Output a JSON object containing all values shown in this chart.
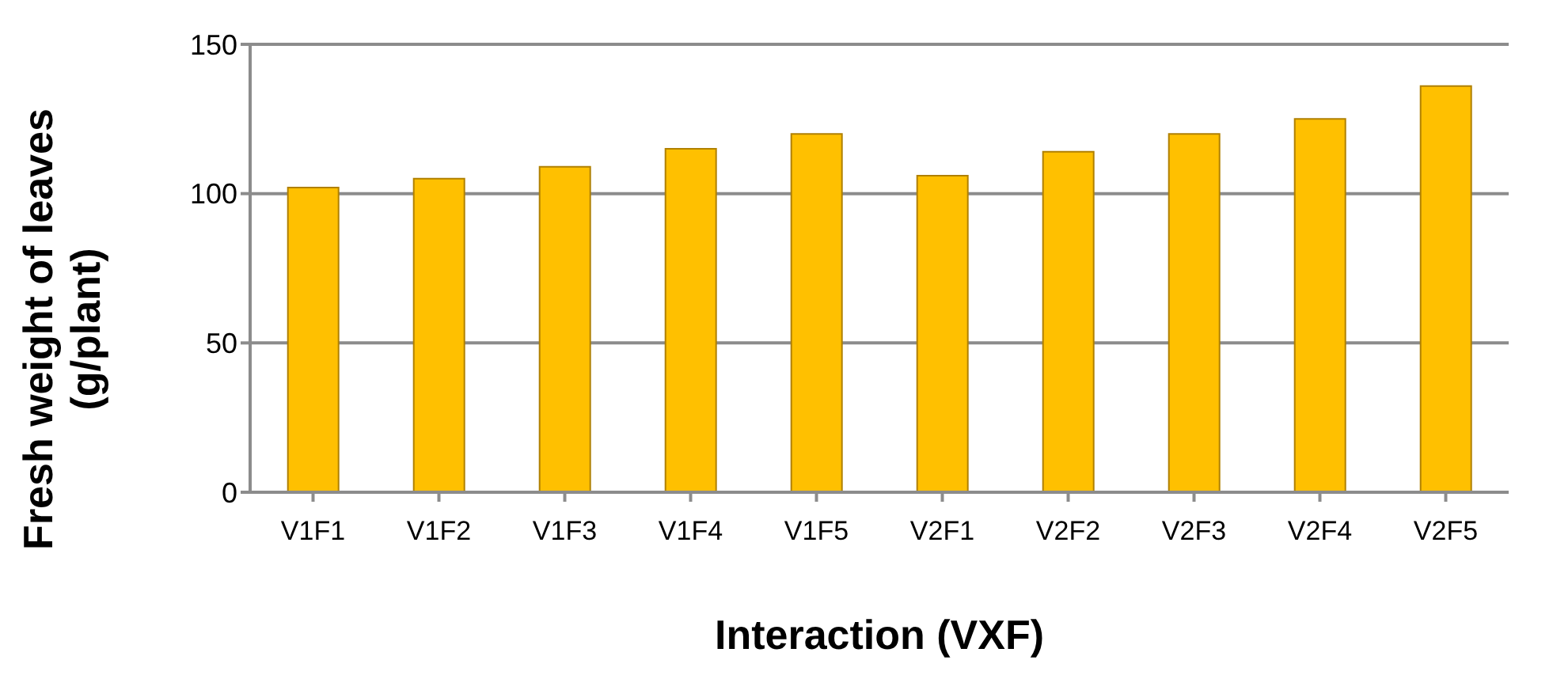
{
  "chart_data": {
    "type": "bar",
    "xlabel": "Interaction (VXF)",
    "ylabel": "Fresh weight of leaves\n(g/plant)",
    "categories": [
      "V1F1",
      "V1F2",
      "V1F3",
      "V1F4",
      "V1F5",
      "V2F1",
      "V2F2",
      "V2F3",
      "V2F4",
      "V2F5"
    ],
    "values": [
      102,
      105,
      109,
      115,
      120,
      106,
      114,
      120,
      125,
      136
    ],
    "color": "#ffc000",
    "ylim": [
      0,
      150
    ],
    "yticks": [
      0,
      50,
      100,
      150
    ],
    "grid": "y"
  }
}
